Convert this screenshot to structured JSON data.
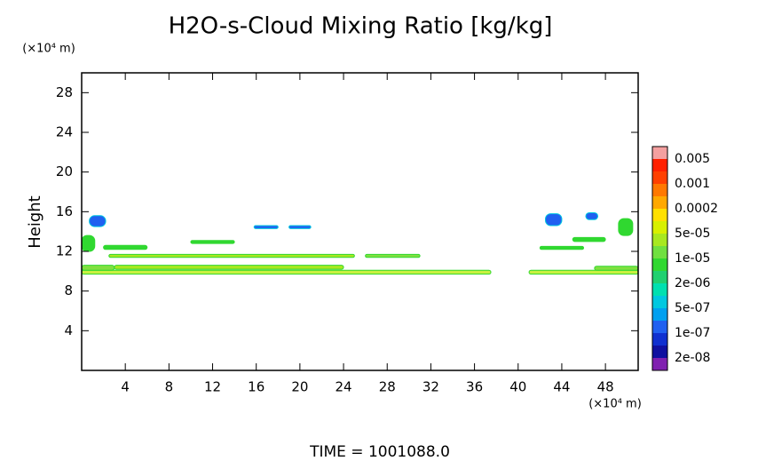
{
  "chart_data": {
    "type": "contour",
    "title": "H2O-s-Cloud Mixing Ratio [kg/kg]",
    "y_unit": "(×10⁴ m)",
    "x_unit": "(×10⁴ m)",
    "y_label": "Height",
    "footer": "TIME = 1001088.0",
    "xlim": [
      0,
      51
    ],
    "ylim": [
      0,
      30
    ],
    "xticks": [
      4,
      8,
      12,
      16,
      20,
      24,
      28,
      32,
      36,
      40,
      44,
      48
    ],
    "yticks": [
      4,
      8,
      12,
      16,
      20,
      24,
      28
    ],
    "colorbar": {
      "labels": [
        "0.005",
        "0.001",
        "0.0002",
        "5e-05",
        "1e-05",
        "2e-06",
        "5e-07",
        "1e-07",
        "2e-08"
      ],
      "colors": [
        "#f4a0a0",
        "#ff2000",
        "#ff4000",
        "#ff7800",
        "#ffa800",
        "#ffe000",
        "#d8f000",
        "#a8e820",
        "#70e040",
        "#30d830",
        "#20d070",
        "#00e0b0",
        "#00c8e0",
        "#00a0f0",
        "#2060f0",
        "#1030d0",
        "#1010a0",
        "#8020b0"
      ]
    },
    "patches": [
      {
        "x": [
          0,
          37.5
        ],
        "y": [
          9.7,
          10.1
        ],
        "color": "#c8f040"
      },
      {
        "x": [
          0,
          3
        ],
        "y": [
          10.1,
          10.6
        ],
        "color": "#80e040"
      },
      {
        "x": [
          3,
          24
        ],
        "y": [
          10.2,
          10.6
        ],
        "color": "#a8e820"
      },
      {
        "x": [
          41,
          51
        ],
        "y": [
          9.7,
          10.1
        ],
        "color": "#c8f040"
      },
      {
        "x": [
          47,
          51
        ],
        "y": [
          10.1,
          10.5
        ],
        "color": "#80e040"
      },
      {
        "x": [
          2.5,
          25
        ],
        "y": [
          11.4,
          11.7
        ],
        "color": "#a8e820"
      },
      {
        "x": [
          26,
          31
        ],
        "y": [
          11.4,
          11.7
        ],
        "color": "#80e040"
      },
      {
        "x": [
          2,
          6
        ],
        "y": [
          12.2,
          12.6
        ],
        "color": "#30d830"
      },
      {
        "x": [
          10,
          14
        ],
        "y": [
          12.8,
          13.1
        ],
        "color": "#30d830"
      },
      {
        "x": [
          42,
          46
        ],
        "y": [
          12.2,
          12.5
        ],
        "color": "#30d830"
      },
      {
        "x": [
          0,
          1.2
        ],
        "y": [
          12.0,
          13.6
        ],
        "color": "#30d830"
      },
      {
        "x": [
          0.7,
          2.2
        ],
        "y": [
          14.5,
          15.6
        ],
        "color": "#2060f0"
      },
      {
        "x": [
          15.8,
          18
        ],
        "y": [
          14.3,
          14.6
        ],
        "color": "#2060f0"
      },
      {
        "x": [
          19,
          21
        ],
        "y": [
          14.3,
          14.6
        ],
        "color": "#2060f0"
      },
      {
        "x": [
          42.5,
          44
        ],
        "y": [
          14.6,
          15.8
        ],
        "color": "#2060f0"
      },
      {
        "x": [
          46.2,
          47.3
        ],
        "y": [
          15.2,
          15.9
        ],
        "color": "#2060f0"
      },
      {
        "x": [
          49.2,
          50.5
        ],
        "y": [
          13.6,
          15.3
        ],
        "color": "#30d830"
      },
      {
        "x": [
          45,
          48
        ],
        "y": [
          13,
          13.4
        ],
        "color": "#30d830"
      }
    ]
  }
}
